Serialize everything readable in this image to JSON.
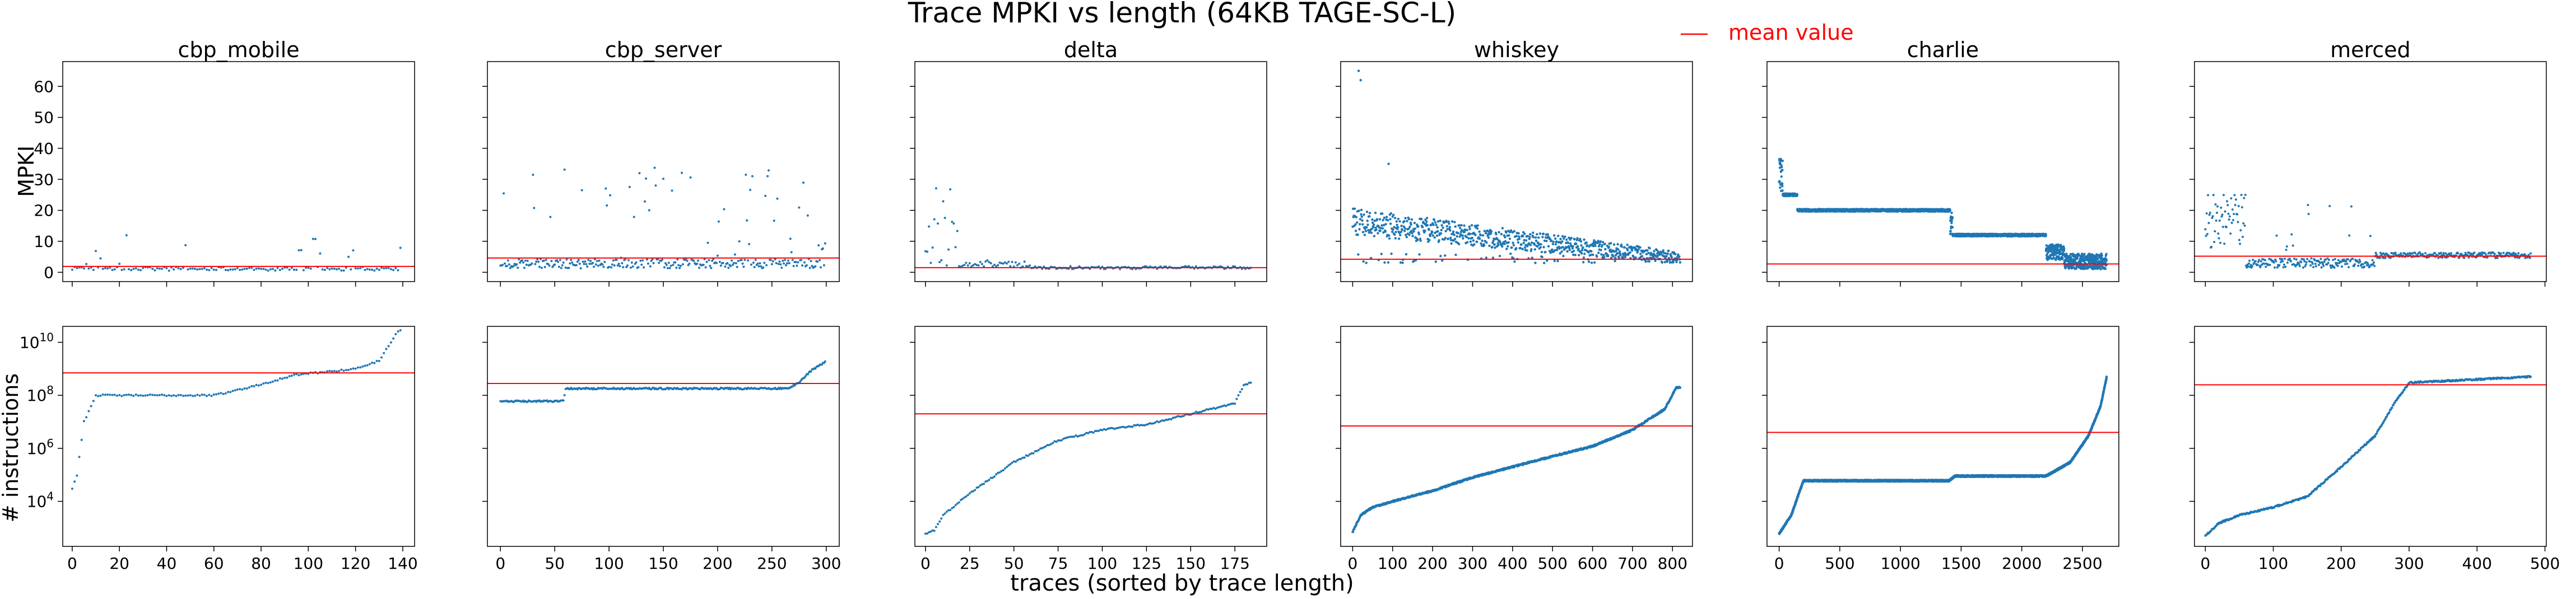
{
  "figure": {
    "title": "Trace MPKI vs length (64KB TAGE-SC-L)",
    "legend_label": "mean value",
    "xlabel": "traces (sorted by trace length)",
    "ylabel_top": "MPKI",
    "ylabel_bottom": "# instructions"
  },
  "colors": {
    "scatter": "#1f77b4",
    "mean_line": "#ff0000",
    "axes": "#000000"
  },
  "chart_data": [
    {
      "type": "scatter",
      "row": "MPKI",
      "title": "cbp_mobile",
      "n": 140,
      "xlim": [
        -4,
        145
      ],
      "ylim": [
        -3,
        68
      ],
      "yticks": [
        0,
        10,
        20,
        30,
        40,
        50,
        60
      ],
      "xticks": [
        0,
        20,
        40,
        60,
        80,
        100,
        120,
        140
      ],
      "mean": 1.9,
      "shape": {
        "base": 1.0,
        "spread": 1.2,
        "outlier_rate": 0.1,
        "outlier_max": 12
      }
    },
    {
      "type": "scatter",
      "row": "MPKI",
      "title": "cbp_server",
      "n": 300,
      "xlim": [
        -12,
        312
      ],
      "ylim": [
        -3,
        68
      ],
      "xticks": [
        0,
        50,
        100,
        150,
        200,
        250,
        300
      ],
      "mean": 4.6,
      "shape": {
        "base": 2.5,
        "spread": 3.0,
        "outlier_rate": 0.18,
        "outlier_max": 35
      }
    },
    {
      "type": "scatter",
      "row": "MPKI",
      "title": "delta",
      "n": 185,
      "xlim": [
        -6,
        193
      ],
      "ylim": [
        -3,
        68
      ],
      "xticks": [
        0,
        25,
        50,
        75,
        100,
        125,
        150,
        175
      ],
      "mean": 1.5,
      "shape": {
        "base": 1.5,
        "spread": 1.0,
        "early_high": 28,
        "early_count": 20
      }
    },
    {
      "type": "scatter",
      "row": "MPKI",
      "title": "whiskey",
      "n": 820,
      "xlim": [
        -30,
        850
      ],
      "ylim": [
        -3,
        68
      ],
      "xticks": [
        0,
        100,
        200,
        300,
        400,
        500,
        600,
        700,
        800
      ],
      "mean": 4.2,
      "shape": {
        "start": 15,
        "end": 4,
        "spread": 8,
        "peaks": [
          [
            15,
            65
          ],
          [
            20,
            62
          ],
          [
            90,
            35
          ]
        ]
      }
    },
    {
      "type": "scatter",
      "row": "MPKI",
      "title": "charlie",
      "n": 2700,
      "xlim": [
        -100,
        2800
      ],
      "ylim": [
        -3,
        68
      ],
      "xticks": [
        0,
        500,
        1000,
        1500,
        2000,
        2500
      ],
      "mean": 2.7,
      "levels": [
        [
          0,
          150,
          25
        ],
        [
          150,
          1420,
          20
        ],
        [
          1420,
          2200,
          12
        ],
        [
          2200,
          2700,
          3
        ]
      ]
    },
    {
      "type": "scatter",
      "row": "MPKI",
      "title": "merced",
      "n": 480,
      "xlim": [
        -16,
        502
      ],
      "ylim": [
        -3,
        68
      ],
      "xticks": [
        0,
        100,
        200,
        300,
        400,
        500
      ],
      "mean": 5.2,
      "shape": {
        "early_high": 25,
        "mid": 3,
        "end": 5.5
      }
    },
    {
      "type": "scatter",
      "row": "instructions",
      "title": "cbp_mobile",
      "n": 140,
      "xlim": [
        -4,
        145
      ],
      "ylog": true,
      "ylim": [
        200,
        40000000000
      ],
      "yticks": [
        10000,
        1000000,
        100000000,
        10000000000
      ],
      "xticks": [
        0,
        20,
        40,
        60,
        80,
        100,
        120,
        140
      ],
      "mean": 700000000,
      "curve": [
        [
          0,
          30000.0
        ],
        [
          2,
          100000.0
        ],
        [
          5,
          10000000.0
        ],
        [
          10,
          100000000.0
        ],
        [
          60,
          100000000.0
        ],
        [
          75,
          200000000.0
        ],
        [
          95,
          600000000.0
        ],
        [
          120,
          1000000000.0
        ],
        [
          130,
          2000000000.0
        ],
        [
          137,
          20000000000.0
        ],
        [
          139,
          30000000000.0
        ]
      ]
    },
    {
      "type": "scatter",
      "row": "instructions",
      "title": "cbp_server",
      "n": 300,
      "xlim": [
        -12,
        312
      ],
      "ylog": true,
      "ylim": [
        200,
        40000000000
      ],
      "xticks": [
        0,
        50,
        100,
        150,
        200,
        250,
        300
      ],
      "mean": 280000000,
      "curve": [
        [
          0,
          60000000.0
        ],
        [
          58,
          60000000.0
        ],
        [
          60,
          180000000.0
        ],
        [
          265,
          180000000.0
        ],
        [
          275,
          300000000.0
        ],
        [
          285,
          800000000.0
        ],
        [
          299,
          1800000000.0
        ]
      ]
    },
    {
      "type": "scatter",
      "row": "instructions",
      "title": "delta",
      "n": 185,
      "xlim": [
        -6,
        193
      ],
      "ylog": true,
      "ylim": [
        200,
        40000000000
      ],
      "xticks": [
        0,
        25,
        50,
        75,
        100,
        125,
        150,
        175
      ],
      "mean": 20000000,
      "curve": [
        [
          0,
          600
        ],
        [
          5,
          800
        ],
        [
          10,
          3000
        ],
        [
          25,
          20000.0
        ],
        [
          50,
          300000.0
        ],
        [
          75,
          2000000.0
        ],
        [
          100,
          5000000.0
        ],
        [
          125,
          8000000.0
        ],
        [
          150,
          20000000.0
        ],
        [
          175,
          50000000.0
        ],
        [
          180,
          250000000.0
        ],
        [
          184,
          300000000.0
        ]
      ]
    },
    {
      "type": "scatter",
      "row": "instructions",
      "title": "whiskey",
      "n": 820,
      "xlim": [
        -30,
        850
      ],
      "ylog": true,
      "ylim": [
        200,
        40000000000
      ],
      "xticks": [
        0,
        100,
        200,
        300,
        400,
        500,
        600,
        700,
        800
      ],
      "mean": 7000000,
      "curve": [
        [
          0,
          700
        ],
        [
          20,
          3000
        ],
        [
          50,
          6000
        ],
        [
          100,
          10000.0
        ],
        [
          200,
          25000.0
        ],
        [
          300,
          80000.0
        ],
        [
          400,
          200000.0
        ],
        [
          500,
          500000.0
        ],
        [
          600,
          1200000.0
        ],
        [
          700,
          5000000.0
        ],
        [
          780,
          30000000.0
        ],
        [
          810,
          200000000.0
        ]
      ]
    },
    {
      "type": "scatter",
      "row": "instructions",
      "title": "charlie",
      "n": 2700,
      "xlim": [
        -100,
        2800
      ],
      "ylog": true,
      "ylim": [
        200,
        40000000000
      ],
      "xticks": [
        0,
        500,
        1000,
        1500,
        2000,
        2500
      ],
      "mean": 4000000,
      "curve": [
        [
          0,
          600
        ],
        [
          100,
          3000
        ],
        [
          200,
          60000.0
        ],
        [
          1400,
          60000.0
        ],
        [
          1450,
          90000.0
        ],
        [
          2200,
          90000.0
        ],
        [
          2400,
          300000.0
        ],
        [
          2550,
          3000000.0
        ],
        [
          2650,
          40000000.0
        ],
        [
          2700,
          500000000.0
        ]
      ]
    },
    {
      "type": "scatter",
      "row": "instructions",
      "title": "merced",
      "n": 480,
      "xlim": [
        -16,
        502
      ],
      "ylog": true,
      "ylim": [
        200,
        40000000000
      ],
      "xticks": [
        0,
        100,
        200,
        300,
        400,
        500
      ],
      "mean": 250000000,
      "curve": [
        [
          0,
          500
        ],
        [
          20,
          1500
        ],
        [
          50,
          3000
        ],
        [
          100,
          6000
        ],
        [
          150,
          15000.0
        ],
        [
          200,
          200000.0
        ],
        [
          250,
          3000000.0
        ],
        [
          280,
          60000000.0
        ],
        [
          300,
          300000000.0
        ],
        [
          400,
          400000000.0
        ],
        [
          475,
          500000000.0
        ]
      ]
    }
  ]
}
